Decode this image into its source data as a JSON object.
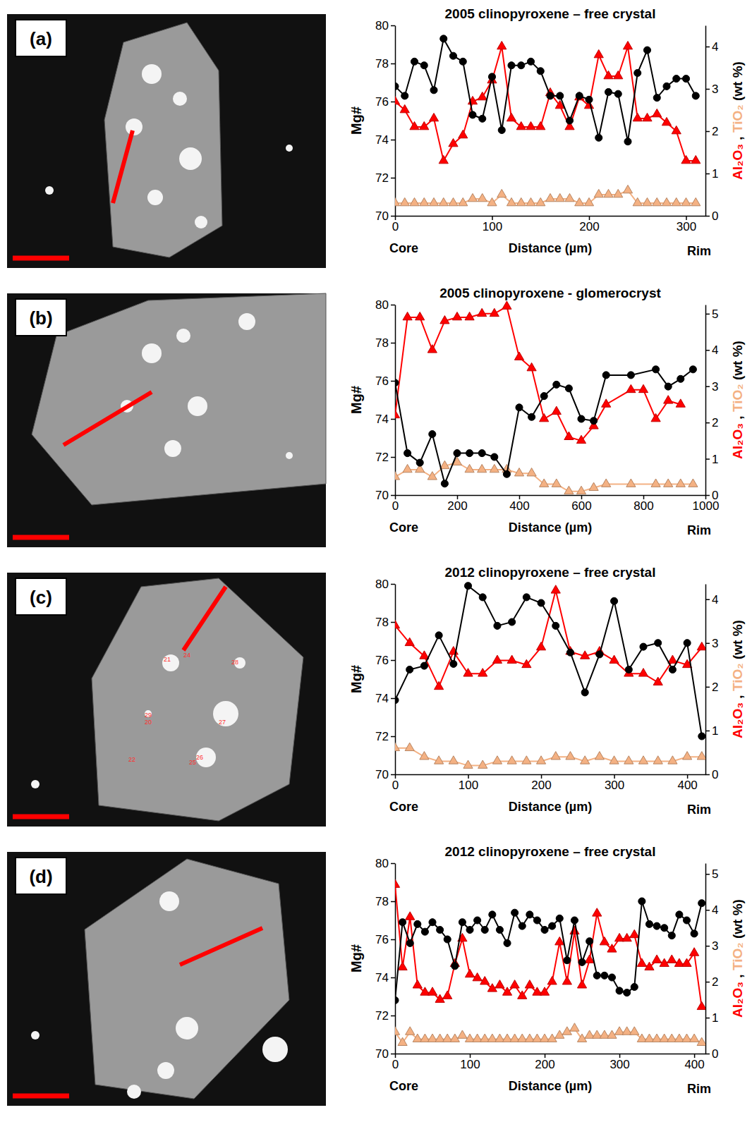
{
  "chart_data": [
    {
      "type": "line",
      "panel": "(a)",
      "title": "2005 clinopyroxene – free crystal",
      "ylabel": "Mg#",
      "y2label": [
        "Al₂O₃",
        " , ",
        "TiO₂",
        " (wt %)"
      ],
      "xlabel": "Distance (µm)",
      "core_label": "Core",
      "rim_label": "Rim",
      "xlim": [
        0,
        320
      ],
      "xticks": [
        0,
        100,
        200,
        300
      ],
      "ylim": [
        70,
        80
      ],
      "yticks": [
        70,
        72,
        74,
        76,
        78,
        80
      ],
      "y2lim": [
        0,
        4.5
      ],
      "y2ticks": [
        0,
        1,
        2,
        3,
        4
      ],
      "series": [
        {
          "name": "TiO₂",
          "color": "#f4b183",
          "marker": "triangle",
          "axis": "y2",
          "x": [
            0,
            10,
            20,
            30,
            40,
            50,
            60,
            70,
            80,
            90,
            100,
            110,
            120,
            130,
            140,
            150,
            160,
            170,
            180,
            190,
            200,
            210,
            220,
            230,
            240,
            250,
            260,
            270,
            280,
            290,
            300,
            310
          ],
          "values": [
            0.3,
            0.3,
            0.3,
            0.3,
            0.3,
            0.3,
            0.3,
            0.3,
            0.4,
            0.4,
            0.3,
            0.5,
            0.3,
            0.3,
            0.3,
            0.3,
            0.4,
            0.4,
            0.4,
            0.3,
            0.3,
            0.5,
            0.5,
            0.5,
            0.6,
            0.3,
            0.3,
            0.3,
            0.3,
            0.3,
            0.3,
            0.3
          ]
        },
        {
          "name": "Al₂O₃",
          "color": "#ff0000",
          "marker": "triangle",
          "axis": "y2",
          "x": [
            0,
            10,
            20,
            30,
            40,
            50,
            60,
            70,
            80,
            90,
            100,
            110,
            120,
            130,
            140,
            150,
            160,
            170,
            180,
            190,
            200,
            210,
            220,
            230,
            240,
            250,
            260,
            270,
            280,
            290,
            300,
            310
          ],
          "values": [
            2.7,
            2.5,
            2.1,
            2.1,
            2.3,
            1.3,
            1.7,
            1.9,
            2.7,
            2.8,
            3.2,
            4.0,
            2.3,
            2.1,
            2.1,
            2.1,
            2.9,
            2.6,
            2.1,
            2.8,
            2.6,
            3.8,
            3.3,
            3.3,
            4.0,
            2.3,
            2.3,
            2.4,
            2.2,
            2.0,
            1.3,
            1.3
          ]
        },
        {
          "name": "Mg#",
          "color": "#000000",
          "marker": "circle",
          "x": [
            0,
            10,
            20,
            30,
            40,
            50,
            60,
            70,
            80,
            90,
            100,
            110,
            120,
            130,
            140,
            150,
            160,
            170,
            180,
            190,
            200,
            210,
            220,
            230,
            240,
            250,
            260,
            270,
            280,
            290,
            300,
            310
          ],
          "values": [
            76.8,
            76.3,
            78.1,
            77.9,
            76.6,
            79.3,
            78.4,
            78.1,
            75.3,
            75.1,
            77.3,
            74.5,
            77.9,
            77.9,
            78.1,
            77.6,
            76.3,
            76.3,
            75.0,
            76.3,
            76.1,
            74.1,
            76.5,
            76.4,
            73.9,
            77.5,
            78.7,
            76.2,
            76.8,
            77.2,
            77.2,
            76.3
          ]
        }
      ]
    },
    {
      "type": "line",
      "panel": "(b)",
      "title": "2005 clinopyroxene - glomerocryst",
      "ylabel": "Mg#",
      "y2label": [
        "Al₂O₃",
        " , ",
        "TiO₂",
        " (wt %)"
      ],
      "xlabel": "Distance (µm)",
      "core_label": "Core",
      "rim_label": "Rim",
      "xlim": [
        0,
        1000
      ],
      "xticks": [
        0,
        200,
        400,
        600,
        800,
        1000
      ],
      "ylim": [
        70,
        80
      ],
      "yticks": [
        70,
        72,
        74,
        76,
        78,
        80
      ],
      "y2lim": [
        0,
        5.25
      ],
      "y2ticks": [
        0,
        1,
        2,
        3,
        4,
        5
      ],
      "series": [
        {
          "name": "TiO₂",
          "color": "#f4b183",
          "marker": "triangle",
          "axis": "y2",
          "x": [
            0,
            40,
            80,
            120,
            160,
            200,
            240,
            280,
            320,
            360,
            400,
            440,
            480,
            520,
            560,
            600,
            640,
            680,
            760,
            840,
            880,
            920,
            960
          ],
          "values": [
            0.5,
            0.7,
            0.7,
            0.5,
            0.8,
            0.9,
            0.7,
            0.7,
            0.7,
            0.7,
            0.6,
            0.6,
            0.3,
            0.3,
            0.1,
            0.1,
            0.2,
            0.3,
            0.3,
            0.3,
            0.3,
            0.3,
            0.3
          ]
        },
        {
          "name": "Al₂O₃",
          "color": "#ff0000",
          "marker": "triangle",
          "axis": "y2",
          "x": [
            0,
            40,
            80,
            120,
            160,
            200,
            240,
            280,
            320,
            360,
            400,
            440,
            480,
            520,
            560,
            600,
            640,
            680,
            760,
            800,
            840,
            880,
            920
          ],
          "values": [
            2.2,
            4.9,
            4.9,
            4.0,
            4.8,
            4.9,
            4.9,
            5.0,
            5.0,
            5.2,
            3.8,
            3.5,
            2.1,
            2.3,
            1.6,
            1.5,
            1.9,
            2.5,
            2.9,
            2.9,
            2.1,
            2.6,
            2.5
          ]
        },
        {
          "name": "Mg#",
          "color": "#000000",
          "marker": "circle",
          "x": [
            0,
            40,
            80,
            120,
            160,
            200,
            240,
            280,
            320,
            360,
            400,
            440,
            480,
            520,
            560,
            600,
            640,
            680,
            760,
            840,
            880,
            920,
            960
          ],
          "values": [
            75.9,
            72.2,
            71.7,
            73.2,
            70.6,
            72.2,
            72.2,
            72.2,
            72.0,
            71.1,
            74.6,
            74.1,
            75.2,
            75.8,
            75.6,
            74.0,
            73.9,
            76.3,
            76.3,
            76.6,
            75.7,
            76.1,
            76.6
          ]
        }
      ]
    },
    {
      "type": "line",
      "panel": "(c)",
      "title": "2012 clinopyroxene – free crystal",
      "ylabel": "Mg#",
      "y2label": [
        "Al₂O₃",
        " , ",
        "TiO₂",
        " (wt %)"
      ],
      "xlabel": "Distance (µm)",
      "core_label": "Core",
      "rim_label": "Rim",
      "image_labels": [
        "24",
        "21",
        "29",
        "20",
        "22",
        "27",
        "26",
        "25",
        "28"
      ],
      "xlim": [
        0,
        425
      ],
      "xticks": [
        0,
        100,
        200,
        300,
        400
      ],
      "ylim": [
        70,
        80
      ],
      "yticks": [
        70,
        72,
        74,
        76,
        78,
        80
      ],
      "y2lim": [
        0,
        4.35
      ],
      "y2ticks": [
        0,
        1,
        2,
        3,
        4
      ],
      "series": [
        {
          "name": "TiO₂",
          "color": "#f4b183",
          "marker": "triangle",
          "axis": "y2",
          "x": [
            0,
            20,
            40,
            60,
            80,
            100,
            120,
            140,
            160,
            180,
            200,
            220,
            240,
            260,
            280,
            300,
            320,
            340,
            360,
            380,
            400,
            420
          ],
          "values": [
            0.6,
            0.6,
            0.4,
            0.3,
            0.3,
            0.2,
            0.2,
            0.3,
            0.3,
            0.3,
            0.3,
            0.4,
            0.4,
            0.3,
            0.4,
            0.3,
            0.3,
            0.3,
            0.3,
            0.3,
            0.4,
            0.4
          ]
        },
        {
          "name": "Al₂O₃",
          "color": "#ff0000",
          "marker": "triangle",
          "axis": "y2",
          "x": [
            0,
            20,
            40,
            60,
            80,
            100,
            120,
            140,
            160,
            180,
            200,
            220,
            240,
            260,
            280,
            300,
            320,
            340,
            360,
            380,
            400,
            420
          ],
          "values": [
            3.4,
            3.0,
            2.7,
            2.0,
            2.8,
            2.3,
            2.3,
            2.6,
            2.6,
            2.5,
            2.9,
            4.2,
            2.8,
            2.7,
            2.8,
            2.6,
            2.3,
            2.3,
            2.1,
            2.6,
            2.5,
            2.9
          ]
        },
        {
          "name": "Mg#",
          "color": "#000000",
          "marker": "circle",
          "x": [
            0,
            20,
            40,
            60,
            80,
            100,
            120,
            140,
            160,
            180,
            200,
            220,
            240,
            260,
            280,
            300,
            320,
            340,
            360,
            380,
            400,
            420
          ],
          "values": [
            73.9,
            75.5,
            75.7,
            77.3,
            75.8,
            79.9,
            79.3,
            77.8,
            78.0,
            79.3,
            79.0,
            77.8,
            76.4,
            74.3,
            76.3,
            79.1,
            75.5,
            76.7,
            76.9,
            75.5,
            76.9,
            72.0
          ]
        }
      ]
    },
    {
      "type": "line",
      "panel": "(d)",
      "title": "2012 clinopyroxene – free crystal",
      "ylabel": "Mg#",
      "y2label": [
        "Al₂O₃",
        " , ",
        "TiO₂",
        " (wt %)"
      ],
      "xlabel": "Distance (µm)",
      "core_label": "Core",
      "rim_label": "Rim",
      "xlim": [
        0,
        415
      ],
      "xticks": [
        0,
        100,
        200,
        300,
        400
      ],
      "ylim": [
        70,
        80
      ],
      "yticks": [
        70,
        72,
        74,
        76,
        78,
        80
      ],
      "y2lim": [
        0,
        5.3
      ],
      "y2ticks": [
        0,
        1,
        2,
        3,
        4,
        5
      ],
      "series": [
        {
          "name": "TiO₂",
          "color": "#f4b183",
          "marker": "triangle",
          "axis": "y2",
          "x": [
            0,
            10,
            20,
            30,
            40,
            50,
            60,
            70,
            80,
            90,
            100,
            110,
            120,
            130,
            140,
            150,
            160,
            170,
            180,
            190,
            200,
            210,
            220,
            230,
            240,
            250,
            260,
            270,
            280,
            290,
            300,
            310,
            320,
            330,
            340,
            350,
            360,
            370,
            380,
            390,
            400,
            410
          ],
          "values": [
            0.6,
            0.3,
            0.6,
            0.4,
            0.4,
            0.4,
            0.4,
            0.4,
            0.4,
            0.5,
            0.4,
            0.4,
            0.4,
            0.4,
            0.4,
            0.4,
            0.4,
            0.4,
            0.4,
            0.4,
            0.4,
            0.4,
            0.5,
            0.6,
            0.7,
            0.4,
            0.5,
            0.5,
            0.5,
            0.5,
            0.6,
            0.6,
            0.6,
            0.4,
            0.4,
            0.4,
            0.4,
            0.4,
            0.4,
            0.4,
            0.4,
            0.3
          ]
        },
        {
          "name": "Al₂O₃",
          "color": "#ff0000",
          "marker": "triangle",
          "axis": "y2",
          "x": [
            0,
            10,
            20,
            30,
            40,
            50,
            60,
            70,
            80,
            90,
            100,
            110,
            120,
            130,
            140,
            150,
            160,
            170,
            180,
            190,
            200,
            210,
            220,
            230,
            240,
            250,
            260,
            270,
            280,
            290,
            300,
            310,
            320,
            330,
            340,
            350,
            360,
            370,
            380,
            390,
            400,
            410
          ],
          "values": [
            4.7,
            2.4,
            3.8,
            1.9,
            1.7,
            1.7,
            1.5,
            1.6,
            2.5,
            3.2,
            2.2,
            2.1,
            2.0,
            1.8,
            1.9,
            1.7,
            1.9,
            1.6,
            1.9,
            1.7,
            1.7,
            2.0,
            3.1,
            2.0,
            3.4,
            1.9,
            2.6,
            3.9,
            3.1,
            2.9,
            3.2,
            3.2,
            3.3,
            2.5,
            2.4,
            2.6,
            2.5,
            2.6,
            2.5,
            2.5,
            2.8,
            1.3
          ]
        },
        {
          "name": "Mg#",
          "color": "#000000",
          "marker": "circle",
          "x": [
            0,
            10,
            20,
            30,
            40,
            50,
            60,
            70,
            80,
            90,
            100,
            110,
            120,
            130,
            140,
            150,
            160,
            170,
            180,
            190,
            200,
            210,
            220,
            230,
            240,
            250,
            260,
            270,
            280,
            290,
            300,
            310,
            320,
            330,
            340,
            350,
            360,
            370,
            380,
            390,
            400,
            410
          ],
          "values": [
            72.8,
            76.9,
            75.8,
            76.8,
            76.4,
            76.9,
            76.5,
            76.0,
            74.6,
            76.9,
            76.5,
            77.0,
            76.5,
            77.3,
            76.5,
            75.8,
            77.4,
            76.7,
            77.3,
            77.0,
            76.5,
            76.7,
            77.1,
            74.9,
            77.0,
            74.8,
            75.9,
            74.1,
            74.1,
            74.0,
            73.3,
            73.2,
            73.5,
            78.0,
            76.8,
            76.7,
            76.6,
            76.2,
            77.3,
            77.0,
            76.3,
            77.9
          ]
        }
      ]
    }
  ]
}
